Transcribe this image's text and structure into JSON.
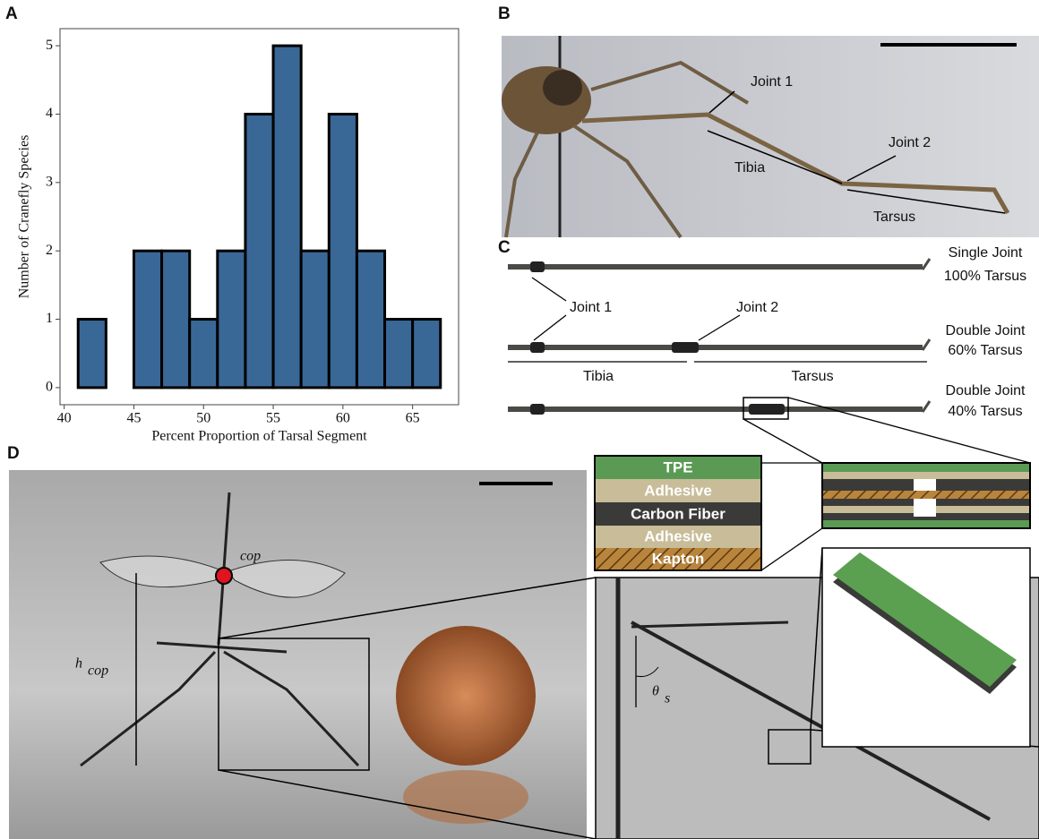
{
  "panel_labels": [
    "A",
    "B",
    "C",
    "D"
  ],
  "chart_data": {
    "type": "histogram",
    "xlabel": "Percent Proportion of Tarsal Segment",
    "ylabel": "Number of Cranefly Species",
    "bins": [
      41,
      43,
      45,
      47,
      49,
      51,
      53,
      55,
      57,
      59,
      61,
      63,
      65,
      67
    ],
    "values": [
      1,
      0,
      2,
      2,
      1,
      2,
      4,
      5,
      2,
      4,
      2,
      1,
      1
    ],
    "color": "#3a6896",
    "xlim": [
      39.7,
      68.3
    ],
    "ylim": [
      -0.25,
      5.25
    ],
    "xticks": [
      40,
      45,
      50,
      55,
      60,
      65
    ],
    "yticks": [
      0,
      1,
      2,
      3,
      4,
      5
    ]
  },
  "panel_b": {
    "labels": [
      "Joint 1",
      "Tibia",
      "Joint 2",
      "Tarsus"
    ]
  },
  "panel_c": {
    "rods": [
      {
        "label": "Single Joint",
        "sub": "100% Tarsus"
      },
      {
        "label": "Double Joint",
        "sub": "60% Tarsus"
      },
      {
        "label": "Double Joint",
        "sub": "40% Tarsus"
      }
    ],
    "joint_labels": [
      "Joint 1",
      "Joint 2"
    ],
    "segment_labels": [
      "Tibia",
      "Tarsus"
    ],
    "layers": [
      "TPE",
      "Adhesive",
      "Carbon Fiber",
      "Adhesive",
      "Kapton"
    ]
  },
  "panel_d": {
    "cop": "cop",
    "h": "h",
    "h_sub": "cop",
    "theta": "θ",
    "theta_sub": "s"
  }
}
